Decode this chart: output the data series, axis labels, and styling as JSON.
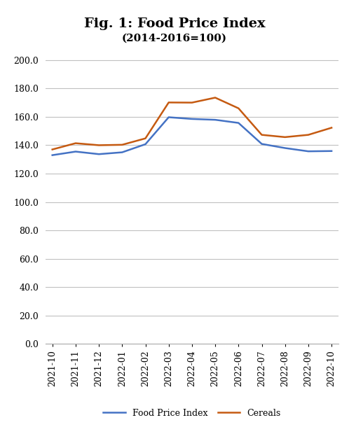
{
  "title": "Fig. 1: Food Price Index",
  "subtitle": "(2014-2016=100)",
  "x_labels": [
    "2021-10",
    "2021-11",
    "2021-12",
    "2022-01",
    "2022-02",
    "2022-03",
    "2022-04",
    "2022-05",
    "2022-06",
    "2022-07",
    "2022-08",
    "2022-09",
    "2022-10"
  ],
  "food_price_index": [
    133.0,
    135.5,
    133.7,
    135.0,
    140.7,
    159.7,
    158.5,
    157.9,
    155.7,
    140.9,
    138.0,
    135.7,
    135.9
  ],
  "cereals": [
    137.0,
    141.4,
    140.0,
    140.3,
    144.8,
    170.1,
    170.0,
    173.5,
    166.0,
    147.3,
    145.7,
    147.3,
    152.3
  ],
  "food_color": "#4472C4",
  "cereals_color": "#C55A11",
  "ylim": [
    0,
    205
  ],
  "yticks": [
    0.0,
    20.0,
    40.0,
    60.0,
    80.0,
    100.0,
    120.0,
    140.0,
    160.0,
    180.0,
    200.0
  ],
  "legend_food": "Food Price Index",
  "legend_cereals": "Cereals",
  "background_color": "#ffffff",
  "grid_color": "#c0c0c0",
  "line_width": 1.8,
  "title_fontsize": 14,
  "subtitle_fontsize": 11,
  "tick_fontsize": 9,
  "legend_fontsize": 9
}
